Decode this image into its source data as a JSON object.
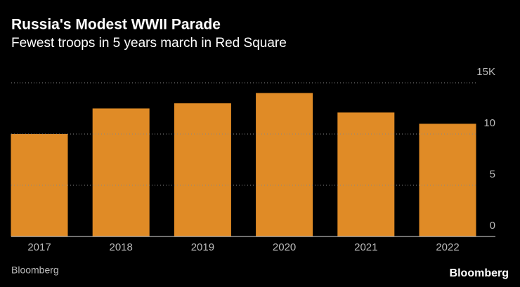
{
  "chart_data": {
    "type": "bar",
    "title": "Russia's Modest WWII Parade",
    "subtitle": "Fewest troops in 5 years march in Red Square",
    "categories": [
      "2017",
      "2018",
      "2019",
      "2020",
      "2021",
      "2022"
    ],
    "values": [
      10.0,
      12.5,
      13.0,
      14.0,
      12.1,
      11.0
    ],
    "color": "#e08b26",
    "ylim": [
      0,
      15
    ],
    "yticks": [
      0,
      5,
      10,
      {
        "value": 15,
        "label": "15K"
      }
    ],
    "grid": true,
    "source": "Bloomberg",
    "logo": "Bloomberg"
  }
}
